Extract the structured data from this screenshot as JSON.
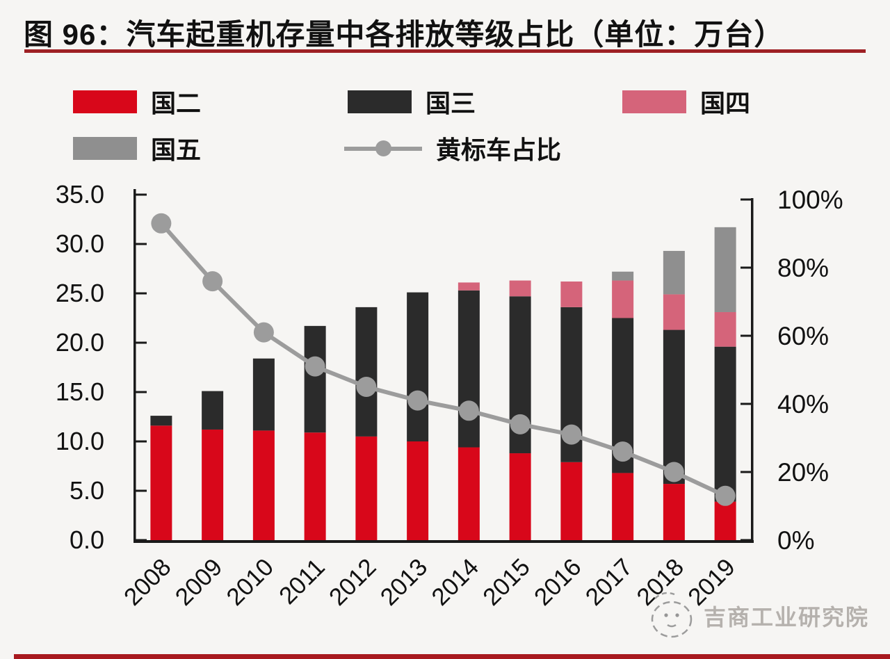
{
  "header": {
    "title": "图 96：汽车起重机存量中各排放等级占比（单位：万台）"
  },
  "colors": {
    "guo2": "#d8071a",
    "guo3": "#2b2b2b",
    "guo4": "#d5647a",
    "guo5": "#8f8f8f",
    "line": "#9c9c9c",
    "axis": "#1a1a1a",
    "title_rule": "#9e2024",
    "bottom_rule": "#a8191f",
    "watermark": "#b5b1ad",
    "background": "#f6f5f3"
  },
  "legend": {
    "items": [
      {
        "label": "国二",
        "swatch": "rect",
        "color_key": "guo2"
      },
      {
        "label": "国三",
        "swatch": "rect",
        "color_key": "guo3"
      },
      {
        "label": "国四",
        "swatch": "rect",
        "color_key": "guo4"
      },
      {
        "label": "国五",
        "swatch": "rect",
        "color_key": "guo5"
      },
      {
        "label": "黄标车占比",
        "swatch": "line-marker",
        "color_key": "line"
      }
    ]
  },
  "chart_data": {
    "type": "bar",
    "subtype": "stacked-column-with-line",
    "title": "汽车起重机存量中各排放等级占比",
    "unit": "万台",
    "grid": false,
    "legend_position": "top",
    "categories": [
      "2008",
      "2009",
      "2010",
      "2011",
      "2012",
      "2013",
      "2014",
      "2015",
      "2016",
      "2017",
      "2018",
      "2019"
    ],
    "series": [
      {
        "name": "国二",
        "color_key": "guo2",
        "values": [
          11.6,
          11.2,
          11.1,
          10.9,
          10.5,
          10.0,
          9.4,
          8.8,
          7.9,
          6.8,
          5.7,
          3.9
        ]
      },
      {
        "name": "国三",
        "color_key": "guo3",
        "values": [
          1.0,
          3.9,
          7.3,
          10.8,
          13.1,
          15.1,
          15.9,
          15.9,
          15.7,
          15.7,
          15.6,
          15.7
        ]
      },
      {
        "name": "国四",
        "color_key": "guo4",
        "values": [
          0,
          0,
          0,
          0,
          0,
          0,
          0.8,
          1.6,
          2.6,
          3.8,
          3.6,
          3.5
        ]
      },
      {
        "name": "国五",
        "color_key": "guo5",
        "values": [
          0,
          0,
          0,
          0,
          0,
          0,
          0,
          0,
          0,
          0.9,
          4.4,
          8.6
        ]
      }
    ],
    "line_series": {
      "name": "黄标车占比",
      "color_key": "line",
      "axis": "right",
      "values_pct": [
        93,
        76,
        61,
        51,
        45,
        41,
        38,
        34,
        31,
        26,
        20,
        13
      ]
    },
    "axes": {
      "left": {
        "min": 0,
        "max": 35,
        "step": 5,
        "tick_labels": [
          "0.0",
          "5.0",
          "10.0",
          "15.0",
          "20.0",
          "25.0",
          "30.0",
          "35.0"
        ]
      },
      "right": {
        "min": 0,
        "max": 100,
        "step": 20,
        "tick_labels": [
          "0%",
          "20%",
          "40%",
          "60%",
          "80%",
          "100%"
        ]
      }
    }
  },
  "footer": {
    "watermark": "吉商工业研究院"
  }
}
